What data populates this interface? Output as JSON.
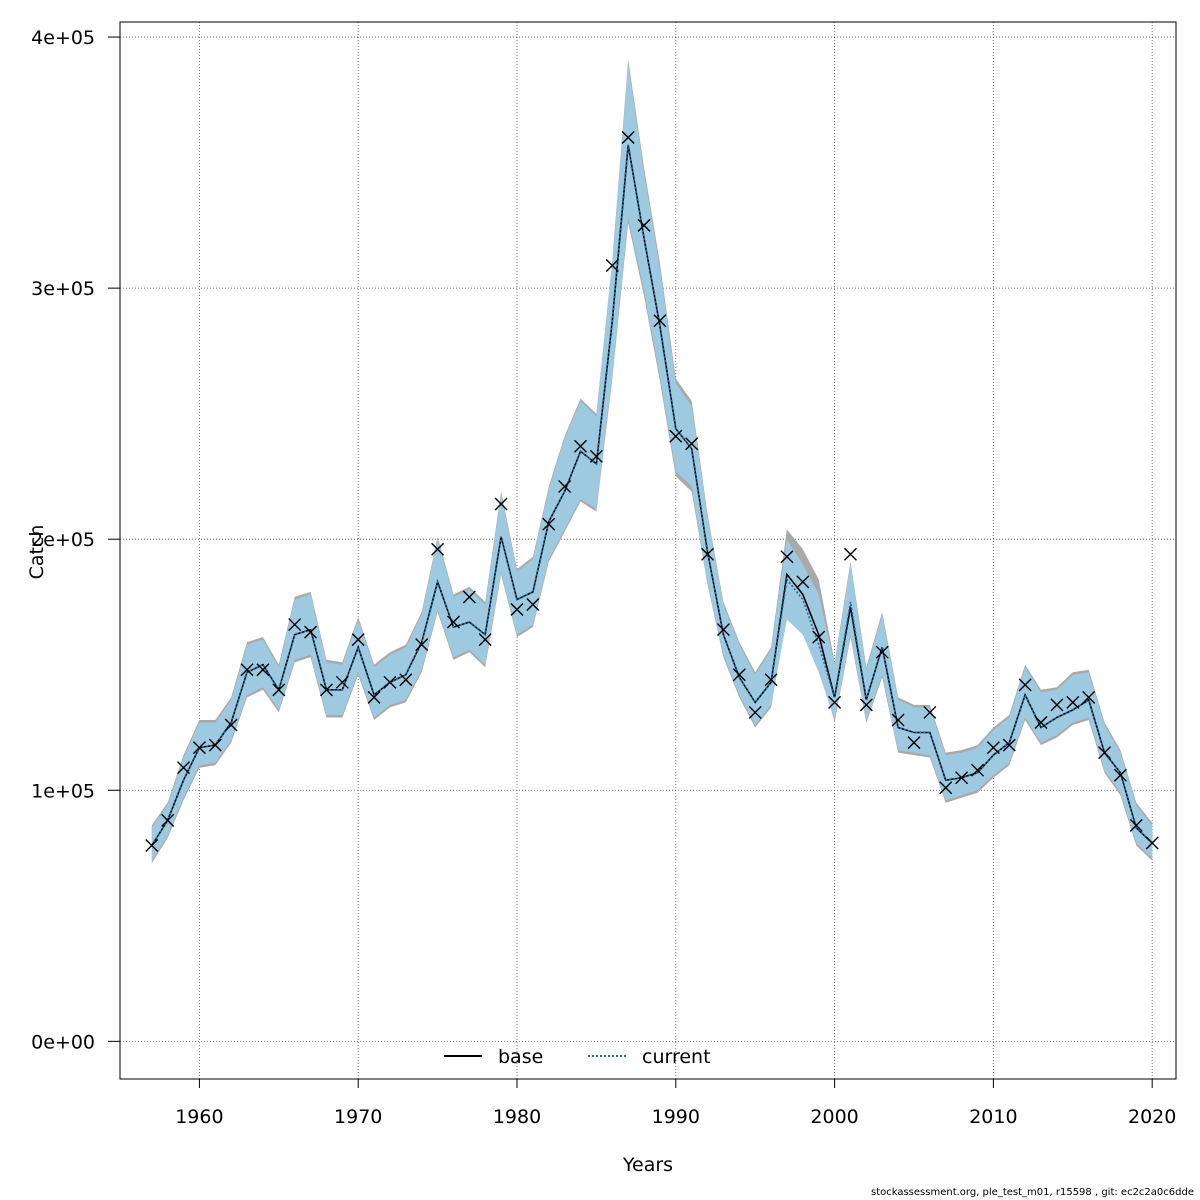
{
  "chart_data": {
    "type": "line",
    "xlabel": "Years",
    "ylabel": "Catch",
    "xlim": [
      1955,
      2021.5
    ],
    "ylim": [
      -15000,
      406000
    ],
    "x_ticks": [
      1960,
      1970,
      1980,
      1990,
      2000,
      2010,
      2020
    ],
    "x_tick_labels": [
      "1960",
      "1970",
      "1980",
      "1990",
      "2000",
      "2010",
      "2020"
    ],
    "y_ticks": [
      0,
      100000,
      200000,
      300000,
      400000
    ],
    "y_tick_labels": [
      "0e+00",
      "1e+05",
      "2e+05",
      "3e+05",
      "4e+05"
    ],
    "grid": true,
    "legend_position": "bottom-center",
    "years": [
      1957,
      1958,
      1959,
      1960,
      1961,
      1962,
      1963,
      1964,
      1965,
      1966,
      1967,
      1968,
      1969,
      1970,
      1971,
      1972,
      1973,
      1974,
      1975,
      1976,
      1977,
      1978,
      1979,
      1980,
      1981,
      1982,
      1983,
      1984,
      1985,
      1986,
      1987,
      1988,
      1989,
      1990,
      1991,
      1992,
      1993,
      1994,
      1995,
      1996,
      1997,
      1998,
      1999,
      2000,
      2001,
      2002,
      2003,
      2004,
      2005,
      2006,
      2007,
      2008,
      2009,
      2010,
      2011,
      2012,
      2013,
      2014,
      2015,
      2016,
      2017,
      2018,
      2019,
      2020
    ],
    "observed": [
      78000,
      88000,
      109000,
      117000,
      118000,
      126000,
      148000,
      148000,
      140000,
      166000,
      163000,
      140000,
      143000,
      160000,
      137000,
      143000,
      144000,
      158000,
      196000,
      167000,
      177000,
      160000,
      214000,
      172000,
      174000,
      206000,
      221000,
      237000,
      233000,
      309000,
      360000,
      325000,
      287000,
      241000,
      238000,
      194000,
      164000,
      146000,
      131000,
      144000,
      193000,
      183000,
      161000,
      135000,
      194000,
      134000,
      155000,
      128000,
      119000,
      131000,
      101000,
      105000,
      108000,
      117000,
      118000,
      142000,
      127000,
      134000,
      135000,
      137000,
      115000,
      106000,
      86000,
      79000
    ],
    "series": [
      {
        "name": "base",
        "style": "solid",
        "color": "#000000",
        "values": [
          78000,
          88000,
          104000,
          117000,
          118000,
          127000,
          147000,
          150000,
          140000,
          162000,
          164000,
          140000,
          140000,
          157000,
          138000,
          143000,
          146000,
          159000,
          183000,
          165000,
          167000,
          162000,
          201000,
          176000,
          179000,
          207000,
          219000,
          235000,
          230000,
          287000,
          357000,
          320000,
          285000,
          244000,
          236000,
          195000,
          162000,
          145000,
          135000,
          143000,
          186000,
          178000,
          162000,
          137000,
          173000,
          136000,
          157000,
          125000,
          123000,
          123000,
          104000,
          105000,
          107000,
          114000,
          119000,
          138000,
          125000,
          129000,
          132000,
          136000,
          115000,
          107000,
          85000,
          79000
        ]
      },
      {
        "name": "current",
        "style": "dotted",
        "color": "#1f6b9a",
        "values": [
          78000,
          88000,
          104000,
          117000,
          118000,
          127000,
          147000,
          150000,
          140000,
          162000,
          164000,
          140000,
          140000,
          157000,
          138000,
          143000,
          146000,
          159000,
          183000,
          165000,
          167000,
          162000,
          201000,
          176000,
          179000,
          207000,
          219000,
          235000,
          230000,
          287000,
          357000,
          320000,
          285000,
          244000,
          236000,
          195000,
          162000,
          145000,
          135000,
          143000,
          184000,
          176000,
          158000,
          137000,
          175000,
          136000,
          157000,
          125000,
          123000,
          123000,
          104000,
          105000,
          107000,
          114000,
          119000,
          138000,
          125000,
          129000,
          132000,
          136000,
          115000,
          107000,
          85000,
          79000
        ]
      }
    ],
    "band_base": {
      "color": "#a9a9a9",
      "lower": [
        71000,
        81000,
        96000,
        109000,
        110000,
        119000,
        137000,
        140000,
        131000,
        151000,
        153000,
        129000,
        129000,
        146000,
        128000,
        133000,
        135000,
        147000,
        171000,
        152000,
        155000,
        149000,
        186000,
        161000,
        165000,
        191000,
        203000,
        215000,
        211000,
        264000,
        326000,
        297000,
        263000,
        225000,
        219000,
        182000,
        153000,
        137000,
        125000,
        133000,
        170000,
        164000,
        150000,
        127000,
        161000,
        127000,
        145000,
        115000,
        114000,
        113000,
        95000,
        97000,
        99000,
        105000,
        110000,
        128000,
        118000,
        121000,
        126000,
        128000,
        107000,
        98000,
        78000,
        72000
      ],
      "upper": [
        86000,
        95000,
        114000,
        128000,
        128000,
        137000,
        159000,
        161000,
        150000,
        177000,
        179000,
        152000,
        151000,
        169000,
        150000,
        155000,
        158000,
        171000,
        201000,
        178000,
        181000,
        175000,
        219000,
        188000,
        193000,
        221000,
        241000,
        256000,
        250000,
        311000,
        391000,
        348000,
        310000,
        264000,
        255000,
        210000,
        175000,
        159000,
        147000,
        157000,
        204000,
        196000,
        184000,
        151000,
        191000,
        149000,
        171000,
        137000,
        134000,
        134000,
        115000,
        116000,
        118000,
        125000,
        130000,
        150000,
        140000,
        141000,
        147000,
        148000,
        127000,
        116000,
        95000,
        87000
      ]
    },
    "band_current": {
      "color": "#9ecae1",
      "lower": [
        72000,
        82000,
        97000,
        110000,
        111000,
        120000,
        138000,
        141000,
        132000,
        152000,
        154000,
        130000,
        130000,
        147000,
        129000,
        134000,
        136000,
        148000,
        172000,
        153000,
        156000,
        150000,
        187000,
        162000,
        166000,
        192000,
        204000,
        216000,
        212000,
        266000,
        328000,
        299000,
        265000,
        227000,
        221000,
        183000,
        154000,
        138000,
        126000,
        134000,
        168000,
        162000,
        147000,
        128000,
        162000,
        128000,
        146000,
        116000,
        115000,
        114000,
        96000,
        98000,
        100000,
        106000,
        111000,
        129000,
        119000,
        122000,
        127000,
        129000,
        108000,
        99000,
        79000,
        73000
      ],
      "upper": [
        85000,
        94000,
        113000,
        127000,
        127000,
        136000,
        158000,
        160000,
        149000,
        176000,
        178000,
        151000,
        150000,
        168000,
        149000,
        154000,
        157000,
        170000,
        200000,
        177000,
        180000,
        174000,
        218000,
        187000,
        192000,
        220000,
        240000,
        255000,
        249000,
        310000,
        389000,
        346000,
        308000,
        262000,
        253000,
        209000,
        174000,
        158000,
        146000,
        156000,
        200000,
        190000,
        178000,
        150000,
        190000,
        148000,
        170000,
        136000,
        133000,
        133000,
        114000,
        115000,
        117000,
        124000,
        129000,
        149000,
        139000,
        140000,
        146000,
        147000,
        126000,
        115000,
        94000,
        86000
      ]
    }
  },
  "legend": {
    "items": [
      {
        "label": "base"
      },
      {
        "label": "current"
      }
    ]
  },
  "footer": "stockassessment.org, ple_test_m01, r15598 , git: ec2c2a0c6dde"
}
